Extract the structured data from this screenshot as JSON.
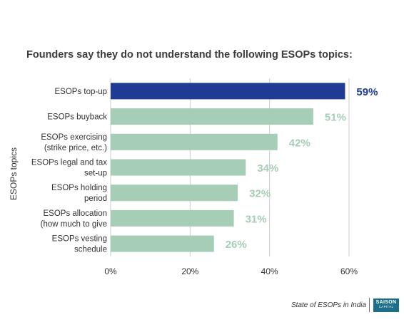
{
  "chart_data": {
    "type": "bar",
    "orientation": "horizontal",
    "title": "Founders say they do not understand the following ESOPs topics:",
    "ylabel": "ESOPs topics",
    "xlim": [
      0,
      60
    ],
    "xticks": [
      "0%",
      "20%",
      "40%",
      "60%"
    ],
    "grid": "vertical",
    "categories": [
      [
        "ESOPs top-up"
      ],
      [
        "ESOPs buyback"
      ],
      [
        "ESOPs exercising",
        "(strike price, etc.)"
      ],
      [
        "ESOPs legal and tax",
        "set-up"
      ],
      [
        "ESOPs holding",
        "period"
      ],
      [
        "ESOPs allocation",
        "(how much to give"
      ],
      [
        "ESOPs vesting",
        "schedule"
      ]
    ],
    "values": [
      59,
      51,
      42,
      34,
      32,
      31,
      26
    ],
    "value_labels": [
      "59%",
      "51%",
      "42%",
      "34%",
      "32%",
      "31%",
      "26%"
    ],
    "highlight_index": 0,
    "colors": {
      "highlight_bar": "#1f3b94",
      "bar": "#a6cdb5",
      "highlight_label": "#1f3b94",
      "label": "#a6cdb5",
      "grid": "#cccccc"
    }
  },
  "footer": {
    "source": "State of ESOPs in India",
    "logo_line1": "SAISON",
    "logo_line2": "CAPITAL"
  }
}
